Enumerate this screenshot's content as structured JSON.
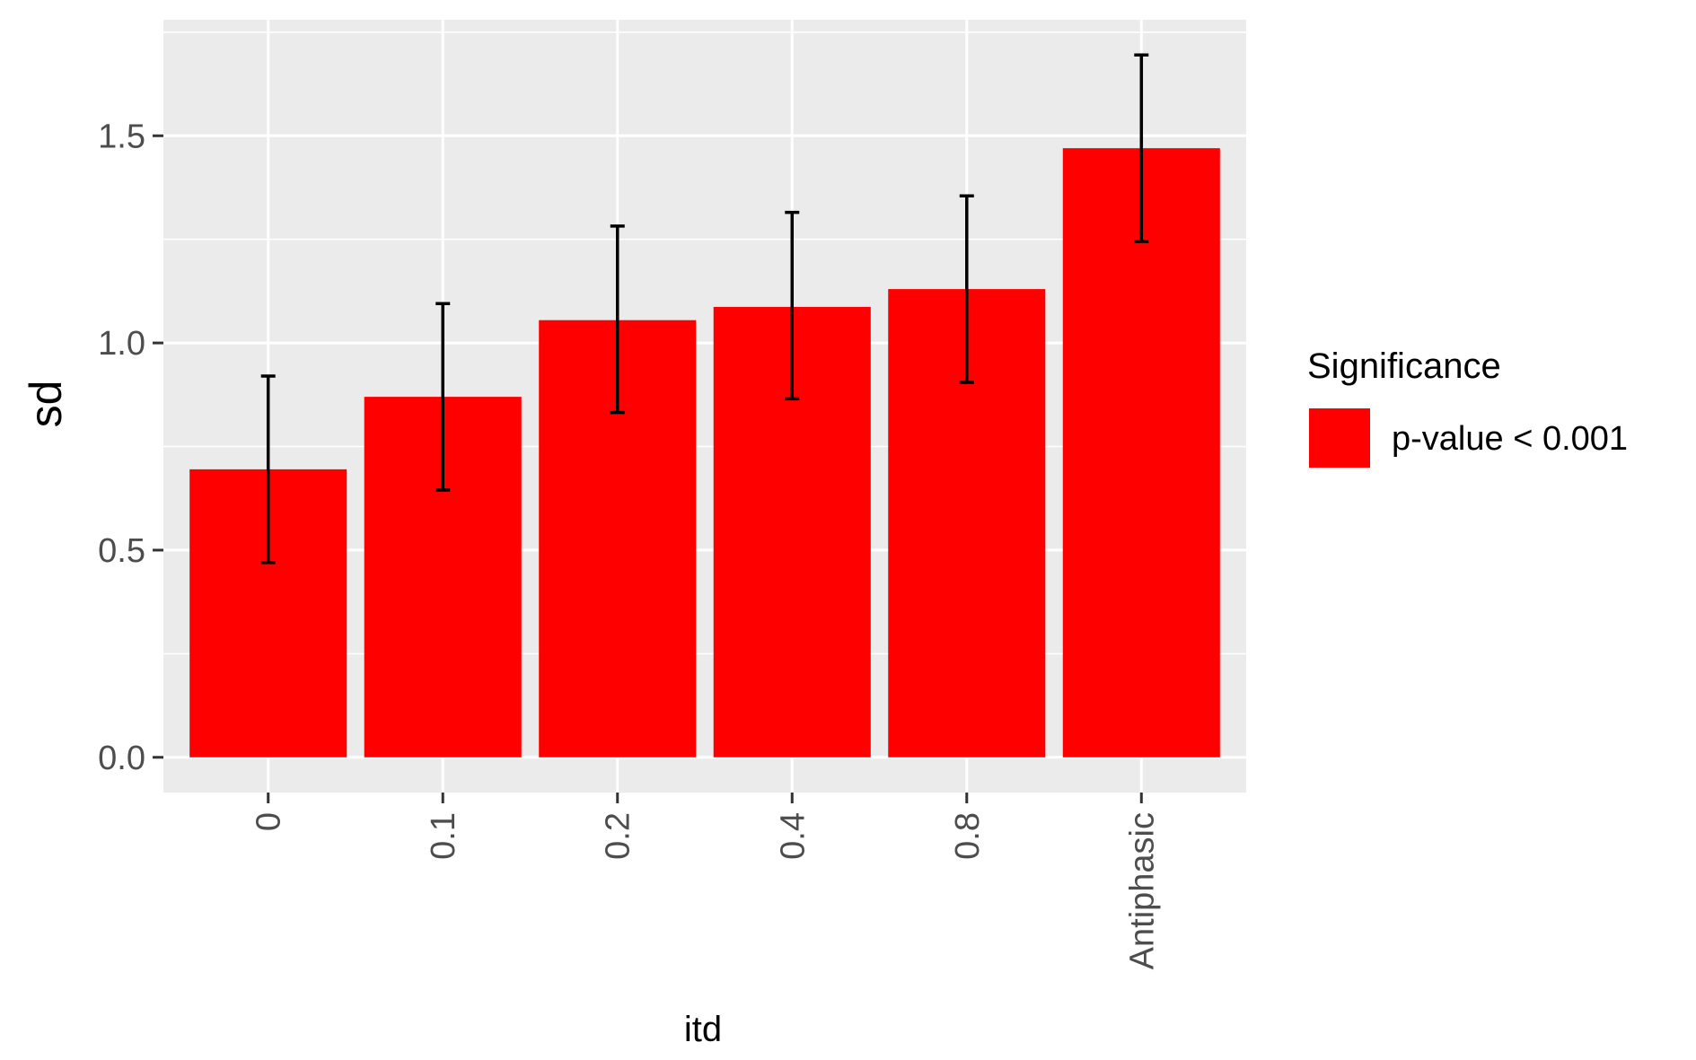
{
  "chart_data": {
    "type": "bar",
    "categories": [
      "0",
      "0.1",
      "0.2",
      "0.4",
      "0.8",
      "Antiphasic"
    ],
    "values": [
      0.695,
      0.87,
      1.055,
      1.087,
      1.13,
      1.47
    ],
    "error_low": [
      0.47,
      0.645,
      0.832,
      0.865,
      0.905,
      1.245
    ],
    "error_high": [
      0.92,
      1.095,
      1.282,
      1.315,
      1.355,
      1.695
    ],
    "xlabel": "itd",
    "ylabel": "sd",
    "ylim": [
      -0.085,
      1.78
    ],
    "yticks": [
      0.0,
      0.5,
      1.0,
      1.5
    ],
    "ytick_labels": [
      "0.0",
      "0.5",
      "1.0",
      "1.5"
    ],
    "grid": true,
    "bar_color": "#ff0000",
    "panel_color": "#ebebeb",
    "legend": {
      "title": "Significance",
      "placement": "right",
      "entries": [
        {
          "label": "p-value < 0.001",
          "color": "#ff0000"
        }
      ]
    }
  }
}
